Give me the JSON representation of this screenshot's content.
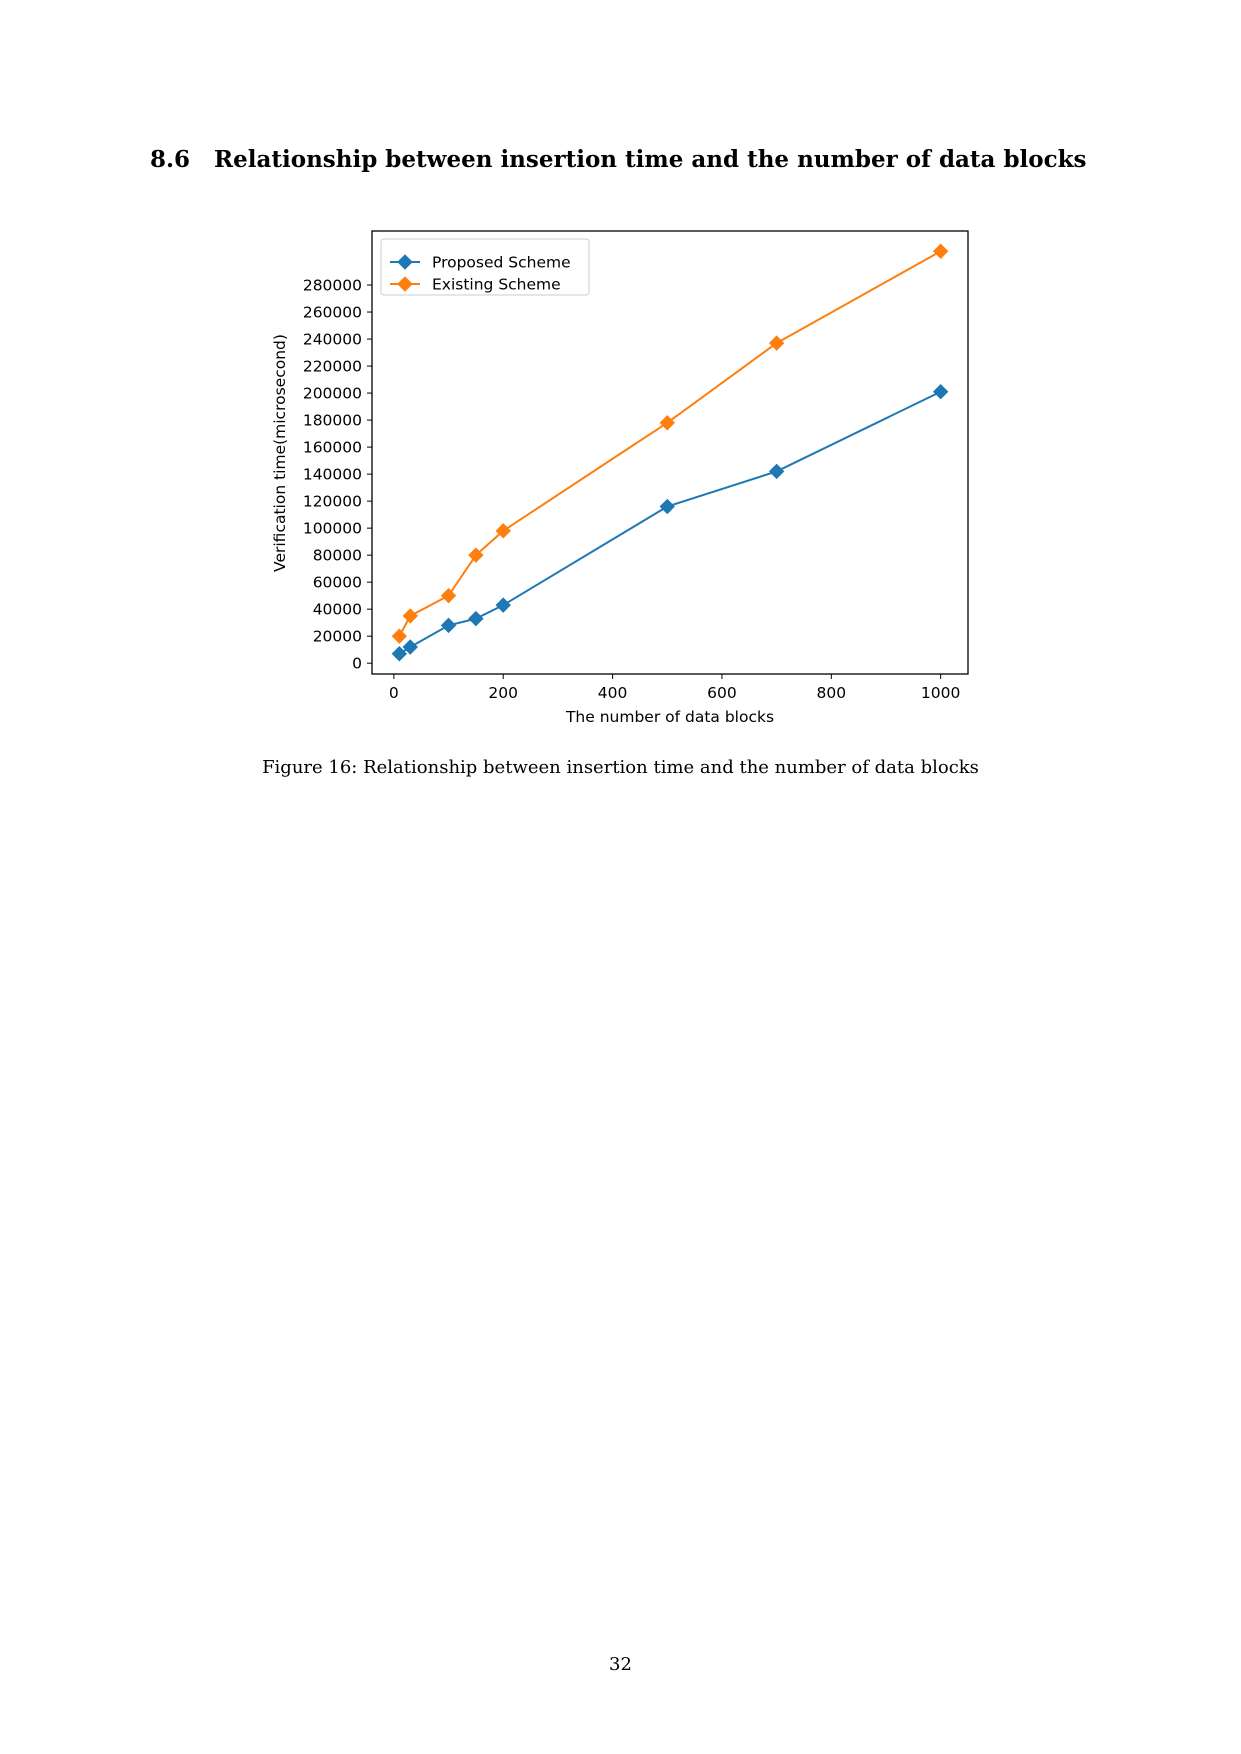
{
  "section": {
    "number": "8.6",
    "title": "Relationship between insertion time and the number of data blocks"
  },
  "chart_data": {
    "type": "line",
    "title": "",
    "xlabel": "The number of data blocks",
    "ylabel": "Verification time(microsecond)",
    "xlim": [
      -40,
      1050
    ],
    "ylim": [
      -8000,
      320000
    ],
    "xticks": [
      0,
      200,
      400,
      600,
      800,
      1000
    ],
    "yticks": [
      0,
      20000,
      40000,
      60000,
      80000,
      100000,
      120000,
      140000,
      160000,
      180000,
      200000,
      220000,
      240000,
      260000,
      280000
    ],
    "grid": false,
    "legend_position": "upper-left",
    "series": [
      {
        "name": "Proposed Scheme",
        "color": "#1f77b4",
        "marker": "diamond",
        "x": [
          10,
          30,
          100,
          150,
          200,
          500,
          700,
          1000
        ],
        "y": [
          7000,
          12000,
          28000,
          33000,
          43000,
          116000,
          142000,
          201000
        ]
      },
      {
        "name": "Existing Scheme",
        "color": "#ff7f0e",
        "marker": "diamond",
        "x": [
          10,
          30,
          100,
          150,
          200,
          500,
          700,
          1000
        ],
        "y": [
          20000,
          35000,
          50000,
          80000,
          98000,
          178000,
          237000,
          305000
        ]
      }
    ]
  },
  "caption": "Figure 16: Relationship between insertion time and the number of data blocks",
  "page_number": "32"
}
